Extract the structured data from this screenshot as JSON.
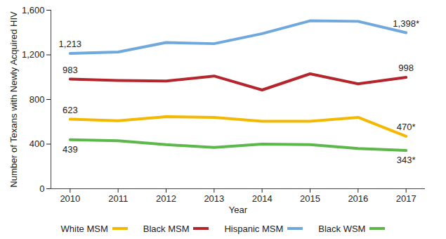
{
  "chart_data": {
    "type": "line",
    "x_label": "Year",
    "y_label": "Number of Texans with Newly Acquired HIV",
    "x": [
      2010,
      2011,
      2012,
      2013,
      2014,
      2015,
      2016,
      2017
    ],
    "xlim": [
      2009.6,
      2017.4
    ],
    "xticks": [
      2010,
      2011,
      2012,
      2013,
      2014,
      2015,
      2016,
      2017
    ],
    "ylim": [
      0,
      1600
    ],
    "yticks": [
      0,
      400,
      800,
      {
        "value": 1200,
        "label": "1,200"
      },
      {
        "value": 1600,
        "label": "1,600"
      }
    ],
    "grid": false,
    "series": [
      {
        "name": "White MSM",
        "color": "#f5b800",
        "values": [
          623,
          610,
          645,
          640,
          605,
          605,
          640,
          470
        ],
        "value_labels": [
          "623",
          null,
          null,
          null,
          null,
          null,
          null,
          "470*"
        ]
      },
      {
        "name": "Black MSM",
        "color": "#b5262c",
        "values": [
          983,
          970,
          965,
          1010,
          885,
          1030,
          940,
          998
        ],
        "value_labels": [
          "983",
          null,
          null,
          null,
          null,
          null,
          null,
          "998"
        ]
      },
      {
        "name": "Hispanic MSM",
        "color": "#6fa8dc",
        "values": [
          1213,
          1225,
          1310,
          1300,
          1390,
          1505,
          1500,
          1398
        ],
        "value_labels": [
          "1,213",
          null,
          null,
          null,
          null,
          null,
          null,
          "1,398*"
        ]
      },
      {
        "name": "Black WSM",
        "color": "#5cb84a",
        "values": [
          439,
          430,
          395,
          370,
          400,
          395,
          360,
          343
        ],
        "value_labels": [
          "439",
          null,
          null,
          null,
          null,
          null,
          null,
          "343*"
        ]
      }
    ]
  }
}
